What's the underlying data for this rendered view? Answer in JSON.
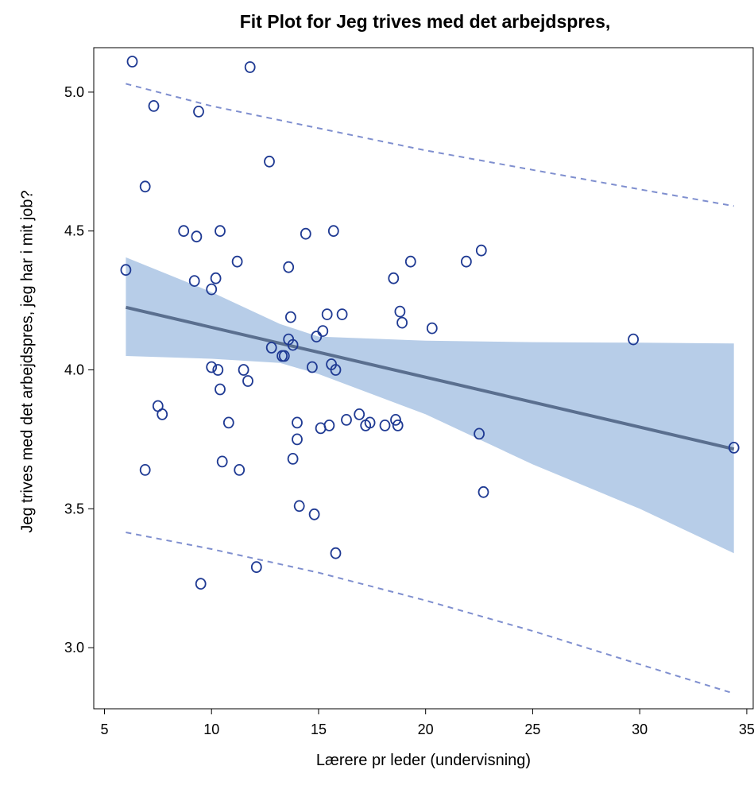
{
  "chart_data": {
    "type": "scatter",
    "title": "Fit Plot for Jeg trives med det arbejdspres,",
    "xlabel": "Lærere pr leder (undervisning)",
    "ylabel": "Jeg trives med det arbejdspres, jeg har i mit job?",
    "xlim": [
      4.5,
      35.3
    ],
    "ylim": [
      2.78,
      5.16
    ],
    "xticks": [
      "5",
      "10",
      "15",
      "20",
      "25",
      "30",
      "35"
    ],
    "yticks": [
      "3.0",
      "3.5",
      "4.0",
      "4.5",
      "5.0"
    ],
    "xtick_values": [
      5,
      10,
      15,
      20,
      25,
      30,
      35
    ],
    "ytick_values": [
      3.0,
      3.5,
      4.0,
      4.5,
      5.0
    ],
    "grid": false,
    "colors": {
      "points": "#1f3a93",
      "fit_line": "#5a6f8f",
      "confidence_band": "#b7cde8",
      "prediction_limits": "#7f8fcf"
    },
    "fit_line": {
      "x": [
        6,
        34.4
      ],
      "y": [
        4.225,
        3.715
      ]
    },
    "confidence_band": {
      "x": [
        6,
        10,
        13.2,
        15,
        20,
        25,
        30,
        34.4
      ],
      "upper": [
        4.405,
        4.28,
        4.165,
        4.12,
        4.105,
        4.1,
        4.098,
        4.095
      ],
      "lower": [
        4.05,
        4.04,
        4.025,
        3.985,
        3.84,
        3.66,
        3.5,
        3.34
      ]
    },
    "prediction_limits": {
      "x": [
        6,
        10,
        15,
        20,
        25,
        30,
        34.4
      ],
      "upper": [
        5.03,
        4.95,
        4.87,
        4.79,
        4.72,
        4.65,
        4.59
      ],
      "lower": [
        3.415,
        3.355,
        3.27,
        3.17,
        3.06,
        2.94,
        2.835
      ]
    },
    "points": [
      {
        "x": 6.0,
        "y": 4.36
      },
      {
        "x": 6.3,
        "y": 5.11
      },
      {
        "x": 6.9,
        "y": 4.66
      },
      {
        "x": 6.9,
        "y": 3.64
      },
      {
        "x": 7.3,
        "y": 4.95
      },
      {
        "x": 7.5,
        "y": 3.87
      },
      {
        "x": 7.7,
        "y": 3.84
      },
      {
        "x": 8.7,
        "y": 4.5
      },
      {
        "x": 9.2,
        "y": 4.32
      },
      {
        "x": 9.3,
        "y": 4.48
      },
      {
        "x": 9.4,
        "y": 4.93
      },
      {
        "x": 9.5,
        "y": 3.23
      },
      {
        "x": 10.0,
        "y": 4.29
      },
      {
        "x": 10.0,
        "y": 4.01
      },
      {
        "x": 10.2,
        "y": 4.33
      },
      {
        "x": 10.3,
        "y": 4.0
      },
      {
        "x": 10.4,
        "y": 4.5
      },
      {
        "x": 10.4,
        "y": 3.93
      },
      {
        "x": 10.5,
        "y": 3.67
      },
      {
        "x": 10.8,
        "y": 3.81
      },
      {
        "x": 11.2,
        "y": 4.39
      },
      {
        "x": 11.3,
        "y": 3.64
      },
      {
        "x": 11.5,
        "y": 4.0
      },
      {
        "x": 11.7,
        "y": 3.96
      },
      {
        "x": 11.8,
        "y": 5.09
      },
      {
        "x": 12.1,
        "y": 3.29
      },
      {
        "x": 12.7,
        "y": 4.75
      },
      {
        "x": 12.8,
        "y": 4.08
      },
      {
        "x": 13.3,
        "y": 4.05
      },
      {
        "x": 13.4,
        "y": 4.05
      },
      {
        "x": 13.6,
        "y": 4.37
      },
      {
        "x": 13.6,
        "y": 4.11
      },
      {
        "x": 13.7,
        "y": 4.19
      },
      {
        "x": 13.8,
        "y": 4.09
      },
      {
        "x": 13.8,
        "y": 3.68
      },
      {
        "x": 14.0,
        "y": 3.81
      },
      {
        "x": 14.0,
        "y": 3.75
      },
      {
        "x": 14.1,
        "y": 3.51
      },
      {
        "x": 14.4,
        "y": 4.49
      },
      {
        "x": 14.7,
        "y": 4.01
      },
      {
        "x": 14.8,
        "y": 3.48
      },
      {
        "x": 14.9,
        "y": 4.12
      },
      {
        "x": 15.1,
        "y": 3.79
      },
      {
        "x": 15.2,
        "y": 4.14
      },
      {
        "x": 15.4,
        "y": 4.2
      },
      {
        "x": 15.5,
        "y": 3.8
      },
      {
        "x": 15.6,
        "y": 4.02
      },
      {
        "x": 15.7,
        "y": 4.5
      },
      {
        "x": 15.8,
        "y": 4.0
      },
      {
        "x": 15.8,
        "y": 3.34
      },
      {
        "x": 16.1,
        "y": 4.2
      },
      {
        "x": 16.3,
        "y": 3.82
      },
      {
        "x": 16.9,
        "y": 3.84
      },
      {
        "x": 17.2,
        "y": 3.8
      },
      {
        "x": 17.4,
        "y": 3.81
      },
      {
        "x": 18.1,
        "y": 3.8
      },
      {
        "x": 18.5,
        "y": 4.33
      },
      {
        "x": 18.6,
        "y": 3.82
      },
      {
        "x": 18.7,
        "y": 3.8
      },
      {
        "x": 18.8,
        "y": 4.21
      },
      {
        "x": 18.9,
        "y": 4.17
      },
      {
        "x": 19.3,
        "y": 4.39
      },
      {
        "x": 20.3,
        "y": 4.15
      },
      {
        "x": 21.9,
        "y": 4.39
      },
      {
        "x": 22.5,
        "y": 3.77
      },
      {
        "x": 22.6,
        "y": 4.43
      },
      {
        "x": 22.7,
        "y": 3.56
      },
      {
        "x": 29.7,
        "y": 4.11
      },
      {
        "x": 34.4,
        "y": 3.72
      }
    ]
  }
}
